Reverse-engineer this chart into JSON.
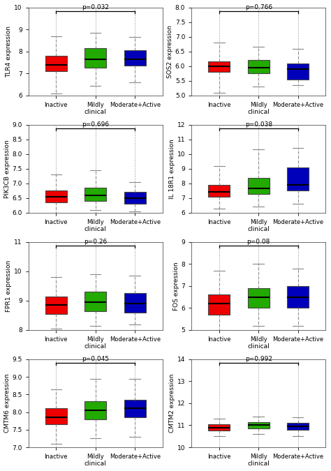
{
  "panels": [
    {
      "gene": "TLR4",
      "ylabel": "TLR4 expression",
      "pvalue": "p=0.032",
      "ylim": [
        6,
        10
      ],
      "yticks": [
        6,
        7,
        8,
        9,
        10
      ],
      "groups": {
        "Inactive": {
          "median": 7.4,
          "q1": 7.1,
          "q3": 7.8,
          "whislo": 6.1,
          "whishi": 8.7
        },
        "Mildly": {
          "median": 7.65,
          "q1": 7.25,
          "q3": 8.15,
          "whislo": 6.45,
          "whishi": 8.85
        },
        "Moderate+Active": {
          "median": 7.65,
          "q1": 7.35,
          "q3": 8.05,
          "whislo": 6.6,
          "whishi": 8.65
        }
      }
    },
    {
      "gene": "SOS2",
      "ylabel": "SOS2 expression",
      "pvalue": "p=0.766",
      "ylim": [
        5.0,
        8.0
      ],
      "yticks": [
        5.0,
        5.5,
        6.0,
        6.5,
        7.0,
        7.5,
        8.0
      ],
      "groups": {
        "Inactive": {
          "median": 6.0,
          "q1": 5.8,
          "q3": 6.15,
          "whislo": 5.1,
          "whishi": 6.8
        },
        "Mildly": {
          "median": 5.95,
          "q1": 5.75,
          "q3": 6.2,
          "whislo": 5.3,
          "whishi": 6.65
        },
        "Moderate+Active": {
          "median": 5.9,
          "q1": 5.55,
          "q3": 6.1,
          "whislo": 5.35,
          "whishi": 6.6
        }
      }
    },
    {
      "gene": "PIK3CB",
      "ylabel": "PIK3CB expression",
      "pvalue": "p=0.696",
      "ylim": [
        6.0,
        9.0
      ],
      "yticks": [
        6.0,
        6.5,
        7.0,
        7.5,
        8.0,
        8.5,
        9.0
      ],
      "groups": {
        "Inactive": {
          "median": 6.55,
          "q1": 6.35,
          "q3": 6.75,
          "whislo": 5.9,
          "whishi": 7.3
        },
        "Mildly": {
          "median": 6.6,
          "q1": 6.4,
          "q3": 6.85,
          "whislo": 6.1,
          "whishi": 7.45
        },
        "Moderate+Active": {
          "median": 6.5,
          "q1": 6.3,
          "q3": 6.7,
          "whislo": 6.05,
          "whishi": 7.05
        }
      }
    },
    {
      "gene": "IL18R1",
      "ylabel": "IL 18R1 expression",
      "pvalue": "p=0.038",
      "ylim": [
        6,
        12
      ],
      "yticks": [
        6,
        7,
        8,
        9,
        10,
        11,
        12
      ],
      "groups": {
        "Inactive": {
          "median": 7.4,
          "q1": 7.1,
          "q3": 7.9,
          "whislo": 6.3,
          "whishi": 9.2
        },
        "Mildly": {
          "median": 7.65,
          "q1": 7.3,
          "q3": 8.35,
          "whislo": 6.4,
          "whishi": 10.3
        },
        "Moderate+Active": {
          "median": 7.9,
          "q1": 7.5,
          "q3": 9.1,
          "whislo": 6.6,
          "whishi": 10.4
        }
      }
    },
    {
      "gene": "FPR1",
      "ylabel": "FPR1 expression",
      "pvalue": "p=0.26",
      "ylim": [
        8,
        11
      ],
      "yticks": [
        8,
        9,
        10,
        11
      ],
      "groups": {
        "Inactive": {
          "median": 8.85,
          "q1": 8.55,
          "q3": 9.15,
          "whislo": 8.05,
          "whishi": 9.8
        },
        "Mildly": {
          "median": 8.95,
          "q1": 8.65,
          "q3": 9.3,
          "whislo": 8.15,
          "whishi": 9.9
        },
        "Moderate+Active": {
          "median": 8.9,
          "q1": 8.6,
          "q3": 9.25,
          "whislo": 8.2,
          "whishi": 9.85
        }
      }
    },
    {
      "gene": "FOS",
      "ylabel": "FOS expression",
      "pvalue": "p=0.08",
      "ylim": [
        5,
        9
      ],
      "yticks": [
        5,
        6,
        7,
        8,
        9
      ],
      "groups": {
        "Inactive": {
          "median": 6.2,
          "q1": 5.7,
          "q3": 6.6,
          "whislo": 5.0,
          "whishi": 7.7
        },
        "Mildly": {
          "median": 6.5,
          "q1": 6.0,
          "q3": 6.9,
          "whislo": 5.2,
          "whishi": 8.0
        },
        "Moderate+Active": {
          "median": 6.5,
          "q1": 6.0,
          "q3": 7.0,
          "whislo": 5.2,
          "whishi": 7.8
        }
      }
    },
    {
      "gene": "CMTM6",
      "ylabel": "CMTM6 expression",
      "pvalue": "p=0.045",
      "ylim": [
        7.0,
        9.5
      ],
      "yticks": [
        7.0,
        7.5,
        8.0,
        8.5,
        9.0,
        9.5
      ],
      "groups": {
        "Inactive": {
          "median": 7.85,
          "q1": 7.65,
          "q3": 8.1,
          "whislo": 7.1,
          "whishi": 8.65
        },
        "Mildly": {
          "median": 8.05,
          "q1": 7.8,
          "q3": 8.3,
          "whislo": 7.25,
          "whishi": 8.95
        },
        "Moderate+Active": {
          "median": 8.1,
          "q1": 7.85,
          "q3": 8.35,
          "whislo": 7.3,
          "whishi": 8.95
        }
      }
    },
    {
      "gene": "CMTM2",
      "ylabel": "CMTM2 expression",
      "pvalue": "p=0.992",
      "ylim": [
        10,
        14
      ],
      "yticks": [
        10,
        11,
        12,
        13,
        14
      ],
      "groups": {
        "Inactive": {
          "median": 10.9,
          "q1": 10.75,
          "q3": 11.05,
          "whislo": 10.5,
          "whishi": 11.3
        },
        "Mildly": {
          "median": 11.0,
          "q1": 10.85,
          "q3": 11.15,
          "whislo": 10.6,
          "whishi": 11.4
        },
        "Moderate+Active": {
          "median": 10.95,
          "q1": 10.8,
          "q3": 11.1,
          "whislo": 10.5,
          "whishi": 11.35
        }
      }
    }
  ],
  "group_colors": {
    "Inactive": "#EE0000",
    "Mildly": "#22AA00",
    "Moderate+Active": "#0000BB"
  },
  "xlabel": "clinical",
  "background_color": "#FFFFFF"
}
